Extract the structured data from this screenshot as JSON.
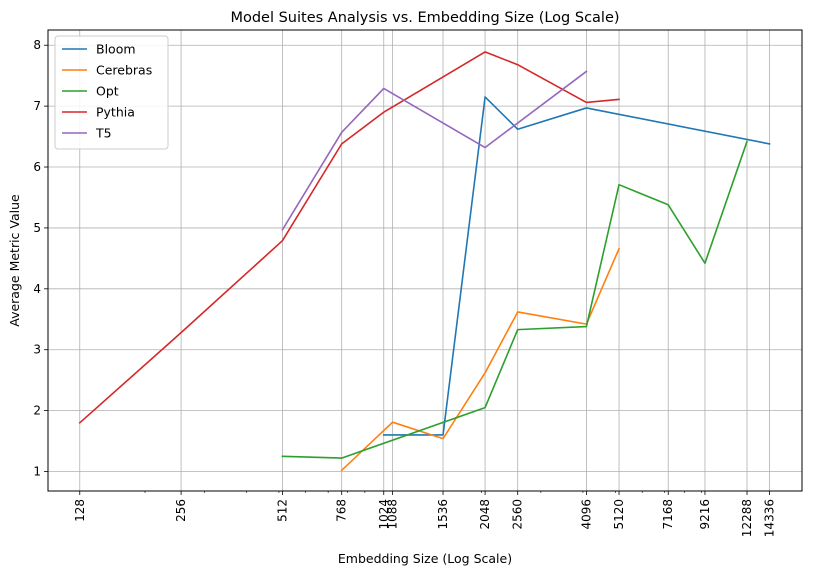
{
  "chart_data": {
    "type": "line",
    "title": "Model Suites Analysis vs. Embedding Size (Log Scale)",
    "xlabel": "Embedding Size (Log Scale)",
    "ylabel": "Average Metric Value",
    "xscale": "log",
    "xlim": [
      103,
      17900
    ],
    "ylim": [
      0.68,
      8.25
    ],
    "xticks": [
      128,
      256,
      512,
      768,
      1024,
      1088,
      1536,
      2048,
      2560,
      4096,
      5120,
      7168,
      9216,
      12288,
      14336
    ],
    "yticks": [
      1,
      2,
      3,
      4,
      5,
      6,
      7,
      8
    ],
    "grid": true,
    "legend_position": "top-left",
    "series": [
      {
        "name": "Bloom",
        "color": "#1f77b4",
        "x": [
          1024,
          1536,
          2048,
          2560,
          4096,
          14336
        ],
        "y": [
          1.6,
          1.6,
          7.15,
          6.62,
          6.97,
          6.38
        ]
      },
      {
        "name": "Cerebras",
        "color": "#ff7f0e",
        "x": [
          768,
          1088,
          1536,
          2048,
          2560,
          4096,
          5120
        ],
        "y": [
          1.02,
          1.81,
          1.54,
          2.62,
          3.62,
          3.42,
          4.66
        ]
      },
      {
        "name": "Opt",
        "color": "#2ca02c",
        "x": [
          512,
          768,
          2048,
          2560,
          4096,
          5120,
          7168,
          9216,
          12288
        ],
        "y": [
          1.25,
          1.22,
          2.05,
          3.33,
          3.38,
          5.71,
          5.38,
          4.42,
          6.42
        ]
      },
      {
        "name": "Pythia",
        "color": "#d62728",
        "x": [
          128,
          256,
          512,
          768,
          1024,
          2048,
          2560,
          4096,
          5120
        ],
        "y": [
          1.8,
          3.28,
          4.79,
          6.38,
          6.9,
          7.89,
          7.68,
          7.06,
          7.11
        ]
      },
      {
        "name": "T5",
        "color": "#9467bd",
        "x": [
          512,
          768,
          1024,
          2048,
          4096
        ],
        "y": [
          4.97,
          6.57,
          7.29,
          6.32,
          7.57
        ]
      }
    ]
  }
}
